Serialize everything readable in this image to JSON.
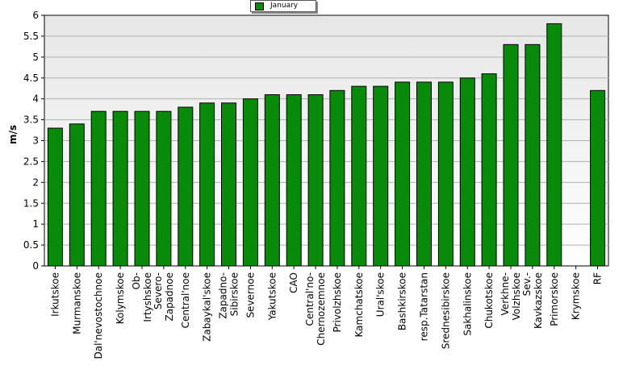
{
  "chart_data": {
    "type": "bar",
    "ylabel": "m/s",
    "xlabel": "",
    "ylim": [
      0,
      6
    ],
    "yticks": [
      "0",
      "0.5",
      "1",
      "1.5",
      "2",
      "2.5",
      "3",
      "3.5",
      "4",
      "4.5",
      "5",
      "5.5",
      "6"
    ],
    "grid": true,
    "legend_position": "top-center",
    "series": [
      {
        "name": "January",
        "color": "#0a8a0a",
        "values": [
          3.3,
          3.4,
          3.7,
          3.7,
          3.7,
          3.7,
          3.8,
          3.9,
          3.9,
          4.0,
          4.1,
          4.1,
          4.1,
          4.2,
          4.3,
          4.3,
          4.4,
          4.4,
          4.4,
          4.5,
          4.6,
          5.3,
          5.3,
          5.8,
          null,
          4.2
        ]
      }
    ],
    "categories": [
      [
        "Irkutskoe"
      ],
      [
        "Murmanskoe"
      ],
      [
        "Dal'nevostochnoe"
      ],
      [
        "Kolymskoe"
      ],
      [
        "Ob-",
        "Irtyshskoe"
      ],
      [
        "Severo-",
        "Zapadnoe"
      ],
      [
        "Central'noe"
      ],
      [
        "Zabaykal'skoe"
      ],
      [
        "Zapadno-",
        "Sibirskoe"
      ],
      [
        "Severnoe"
      ],
      [
        "Yakutskoe"
      ],
      [
        "CAO"
      ],
      [
        "Central'no-",
        "Chernozemnoe"
      ],
      [
        "Privolzhskoe"
      ],
      [
        "Kamchatskoe"
      ],
      [
        "Ural'skoe"
      ],
      [
        "Bashkirskoe"
      ],
      [
        "resp.Tatarstan"
      ],
      [
        "Srednesibirskoe"
      ],
      [
        "Sakhalinskoe"
      ],
      [
        "Chukotskoe"
      ],
      [
        "Verkhne-",
        "Volzhskoe"
      ],
      [
        "Sev.-",
        "Kavkazskoe"
      ],
      [
        "Primorskoe"
      ],
      [
        "Krymskoe"
      ],
      [
        "RF"
      ]
    ]
  }
}
